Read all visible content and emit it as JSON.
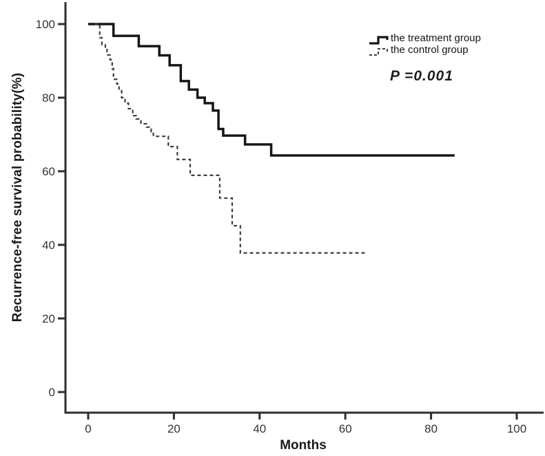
{
  "figure": {
    "p_value_label": "P =0.001"
  },
  "chart_data": {
    "type": "line",
    "subtype": "kaplan-meier-step-curve",
    "title": "",
    "xlabel": "Months",
    "ylabel": "Recurrence-free survival probability(%)",
    "x_ticks": [
      0,
      20,
      40,
      60,
      80,
      100
    ],
    "y_ticks": [
      0,
      20,
      40,
      60,
      80,
      100
    ],
    "xlim": [
      -5,
      106
    ],
    "ylim": [
      -6,
      106
    ],
    "grid": false,
    "legend_position": "upper-right-inside",
    "annotation": "P =0.001",
    "series": [
      {
        "name": "the treatment group",
        "style": "solid",
        "color": "#161616",
        "points": [
          [
            0,
            100
          ],
          [
            5.9,
            96.8
          ],
          [
            11.8,
            94.0
          ],
          [
            16.6,
            91.5
          ],
          [
            19.0,
            88.8
          ],
          [
            21.6,
            84.5
          ],
          [
            23.5,
            82.2
          ],
          [
            25.5,
            80.0
          ],
          [
            27.2,
            78.5
          ],
          [
            29.1,
            76.5
          ],
          [
            30.4,
            71.5
          ],
          [
            31.5,
            69.7
          ],
          [
            36.6,
            67.3
          ],
          [
            42.7,
            64.3
          ],
          [
            85.5,
            64.3
          ]
        ]
      },
      {
        "name": "the control group",
        "style": "dashed",
        "color": "#3d3d3d",
        "points": [
          [
            1.5,
            100
          ],
          [
            2.7,
            96.3
          ],
          [
            3.2,
            94.4
          ],
          [
            4.0,
            93.5
          ],
          [
            4.4,
            91.6
          ],
          [
            5.1,
            90.3
          ],
          [
            5.6,
            87.9
          ],
          [
            5.9,
            85.0
          ],
          [
            6.7,
            83.7
          ],
          [
            7.2,
            81.9
          ],
          [
            7.8,
            80.0
          ],
          [
            8.6,
            78.5
          ],
          [
            9.4,
            77.0
          ],
          [
            10.4,
            75.1
          ],
          [
            11.2,
            74.2
          ],
          [
            12.3,
            72.9
          ],
          [
            13.6,
            72.0
          ],
          [
            14.7,
            70.7
          ],
          [
            15.2,
            69.5
          ],
          [
            18.7,
            66.7
          ],
          [
            20.8,
            63.2
          ],
          [
            23.8,
            58.9
          ],
          [
            30.7,
            52.7
          ],
          [
            33.6,
            45.2
          ],
          [
            35.5,
            37.8
          ],
          [
            64.6,
            37.8
          ]
        ]
      }
    ]
  },
  "colors": {
    "background": "#ffffff",
    "axis": "#2d2d2d",
    "tick_label": "#333333"
  }
}
